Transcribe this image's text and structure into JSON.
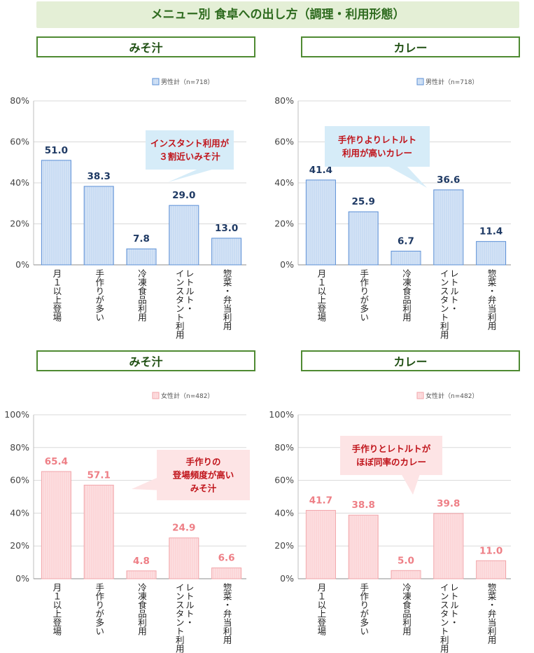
{
  "title": "メニュー別 食卓への出し方（調理・利用形態）",
  "colors": {
    "male_fill": "#c9dcf3",
    "male_stroke": "#5b8fd6",
    "male_label": "#1f3a64",
    "female_fill": "#fcd6d8",
    "female_stroke": "#f2a5aa",
    "female_label": "#ee7f86",
    "callout_male": "#d6ecf8",
    "callout_female": "#fde4e5",
    "grid": "#d9d9d9"
  },
  "chart_data": [
    {
      "type": "bar",
      "title": "みそ汁",
      "categories": [
        "月１以上登場",
        "手作りが多い",
        "冷凍食品利用",
        "レトルト・インスタント利用",
        "惣菜・弁当利用"
      ],
      "series": [
        {
          "name": "男性計（n=718）",
          "values": [
            51.0,
            38.3,
            7.8,
            29.0,
            13.0
          ]
        }
      ],
      "ylim": [
        0,
        80
      ],
      "yticks": [
        "0%",
        "20%",
        "40%",
        "60%",
        "80%"
      ],
      "grid": true,
      "legend": "top-right",
      "annotation": "インスタント利用が|３割近いみそ汁"
    },
    {
      "type": "bar",
      "title": "カレー",
      "categories": [
        "月１以上登場",
        "手作りが多い",
        "冷凍食品利用",
        "レトルト・インスタント利用",
        "惣菜・弁当利用"
      ],
      "series": [
        {
          "name": "男性計（n=718）",
          "values": [
            41.4,
            25.9,
            6.7,
            36.6,
            11.4
          ]
        }
      ],
      "ylim": [
        0,
        80
      ],
      "yticks": [
        "0%",
        "20%",
        "40%",
        "60%",
        "80%"
      ],
      "grid": true,
      "legend": "top-right",
      "annotation": "手作りよりレトルト|利用が高いカレー"
    },
    {
      "type": "bar",
      "title": "みそ汁",
      "categories": [
        "月１以上登場",
        "手作りが多い",
        "冷凍食品利用",
        "レトルト・インスタント利用",
        "惣菜・弁当利用"
      ],
      "series": [
        {
          "name": "女性計（n=482）",
          "values": [
            65.4,
            57.1,
            4.8,
            24.9,
            6.6
          ]
        }
      ],
      "ylim": [
        0,
        100
      ],
      "yticks": [
        "0%",
        "20%",
        "40%",
        "60%",
        "80%",
        "100%"
      ],
      "grid": true,
      "legend": "top-right",
      "annotation": "手作りの|登場頻度が高い|みそ汁"
    },
    {
      "type": "bar",
      "title": "カレー",
      "categories": [
        "月１以上登場",
        "手作りが多い",
        "冷凍食品利用",
        "レトルト・インスタント利用",
        "惣菜・弁当利用"
      ],
      "series": [
        {
          "name": "女性計（n=482）",
          "values": [
            41.7,
            38.8,
            5.0,
            39.8,
            11.0
          ]
        }
      ],
      "ylim": [
        0,
        100
      ],
      "yticks": [
        "0%",
        "20%",
        "40%",
        "60%",
        "80%",
        "100%"
      ],
      "grid": true,
      "legend": "top-right",
      "annotation": "手作りとレトルトが|ほぼ同率のカレー"
    }
  ]
}
